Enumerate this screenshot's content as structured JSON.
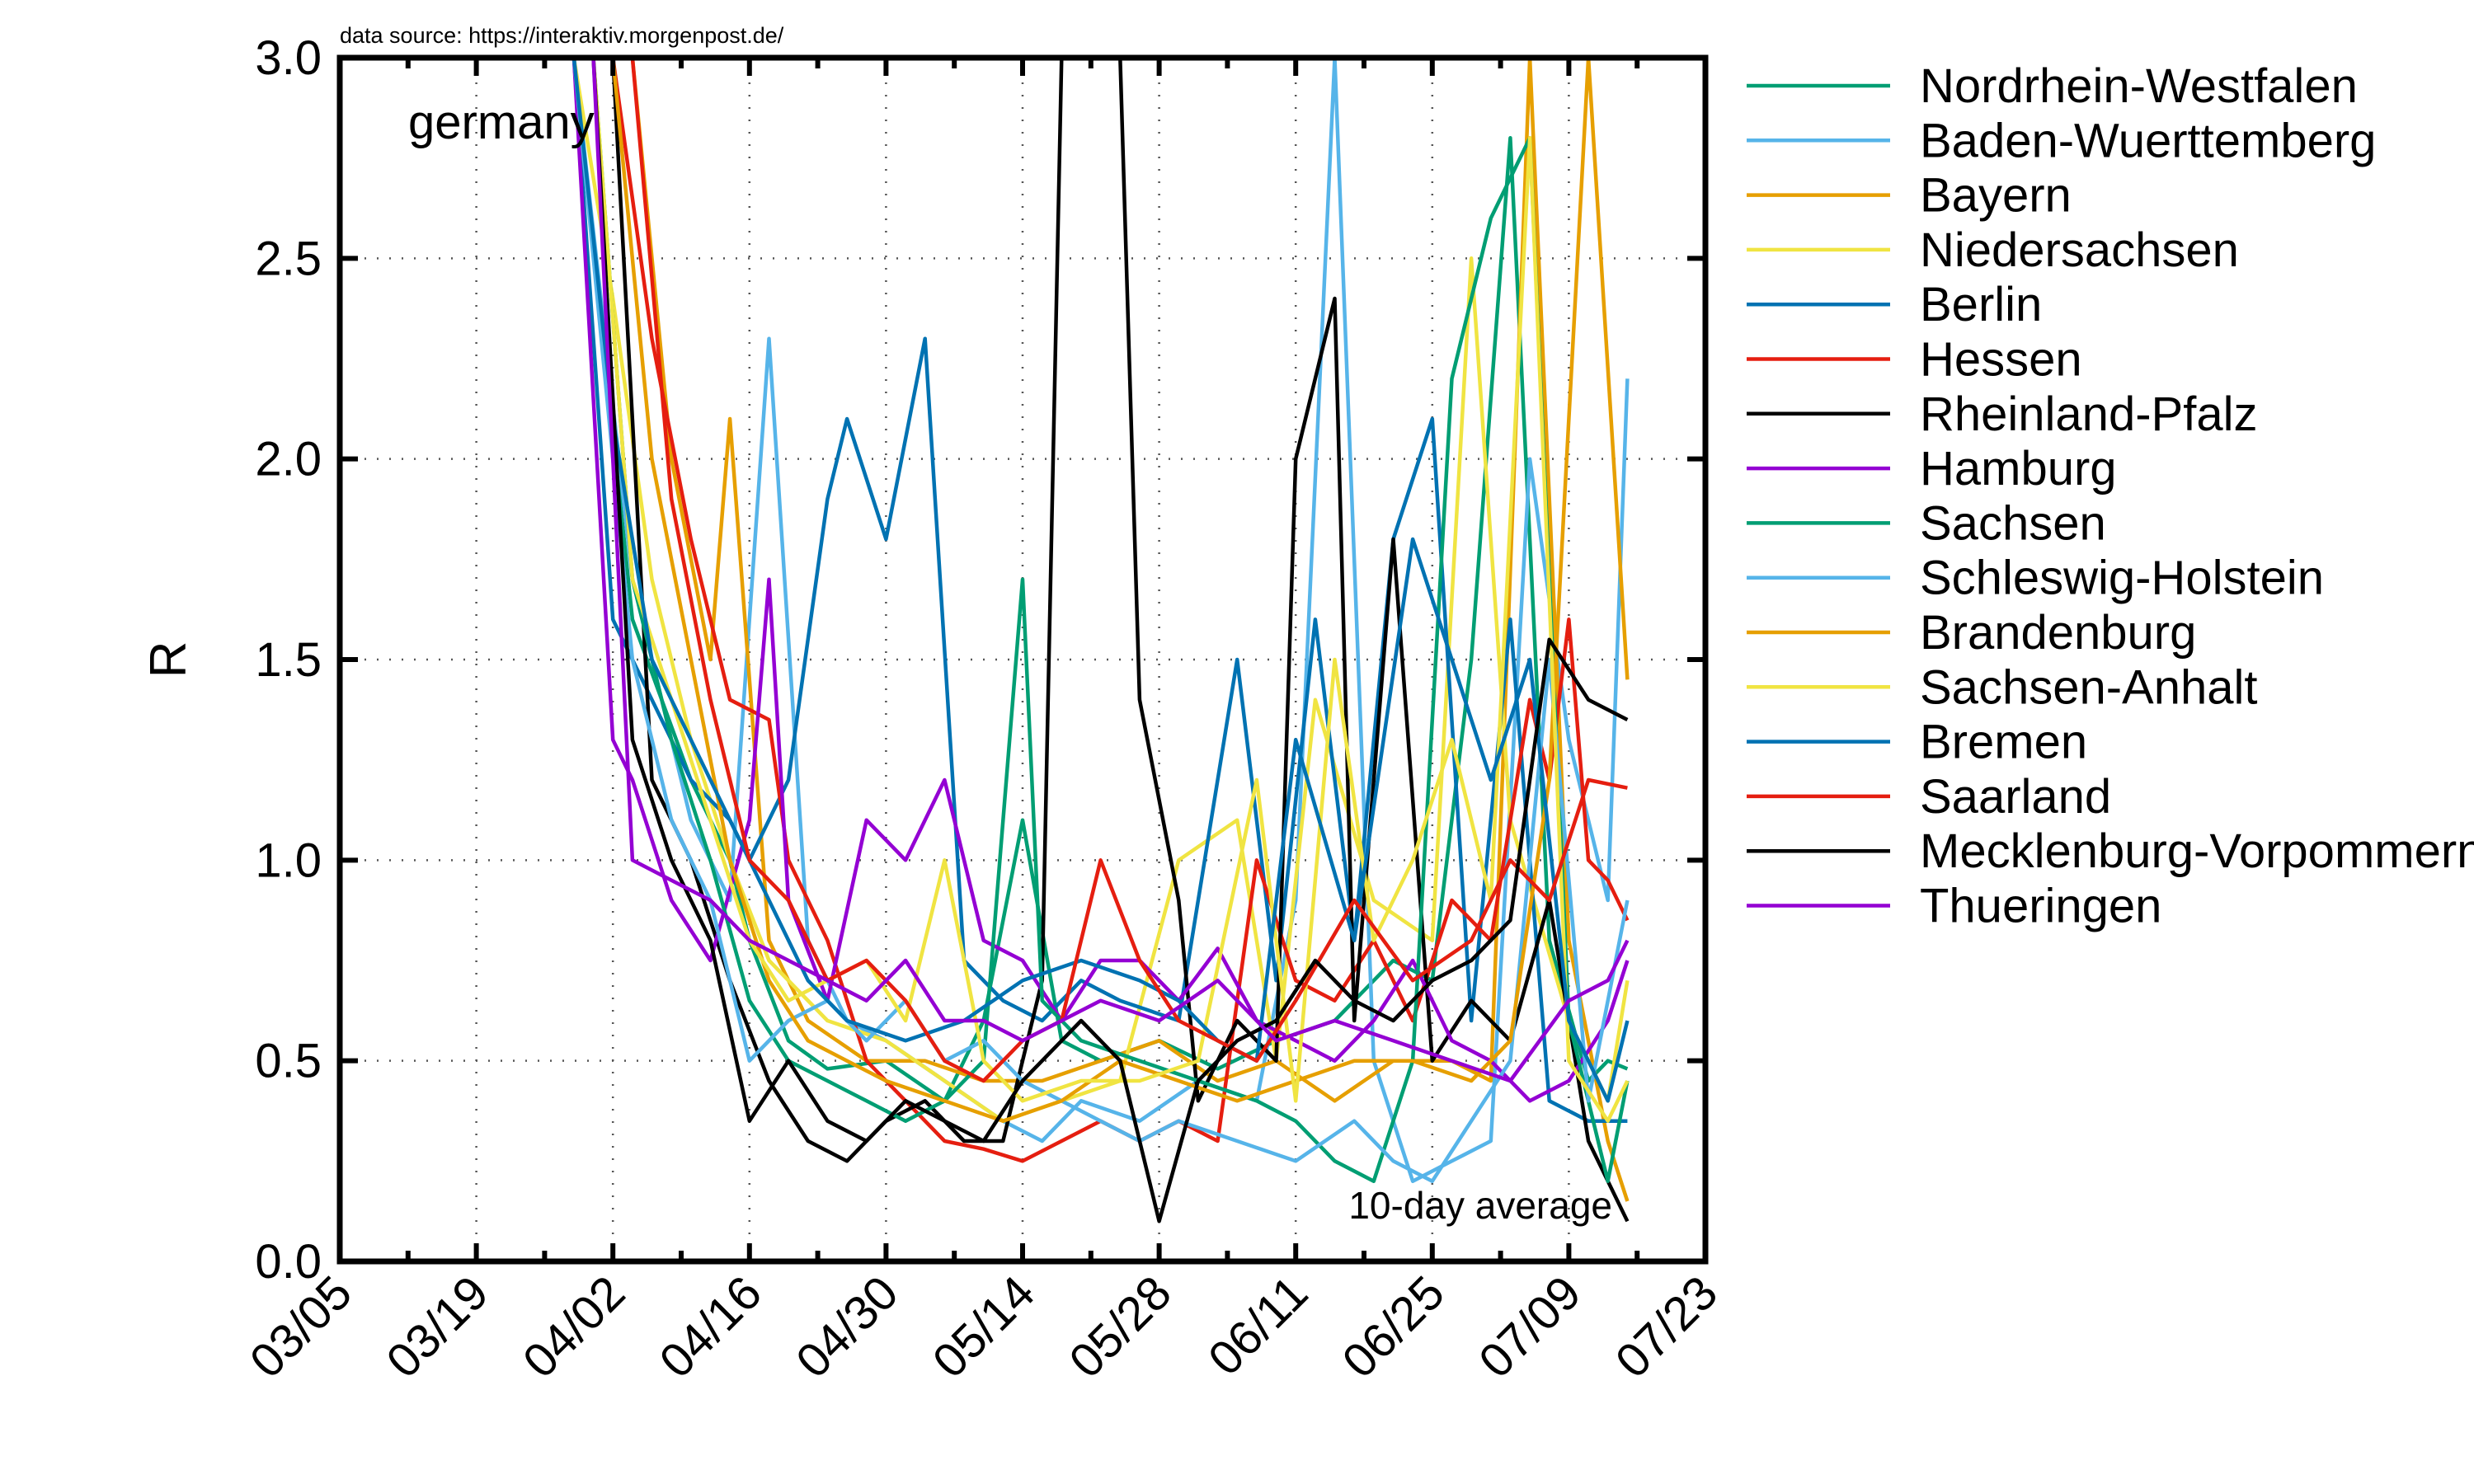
{
  "chart_data": {
    "type": "line",
    "title": "",
    "source_note": "data source: https://interaktiv.morgenpost.de/",
    "annotations": {
      "region": "germany",
      "smoothing": "10-day average"
    },
    "xlabel": "",
    "ylabel": "R",
    "xlim": [
      0,
      140
    ],
    "ylim": [
      0,
      3.0
    ],
    "x_ticks": [
      {
        "day": 0,
        "label": "03/05"
      },
      {
        "day": 14,
        "label": "03/19"
      },
      {
        "day": 28,
        "label": "04/02"
      },
      {
        "day": 42,
        "label": "04/16"
      },
      {
        "day": 56,
        "label": "04/30"
      },
      {
        "day": 70,
        "label": "05/14"
      },
      {
        "day": 84,
        "label": "05/28"
      },
      {
        "day": 98,
        "label": "06/11"
      },
      {
        "day": 112,
        "label": "06/25"
      },
      {
        "day": 126,
        "label": "07/09"
      },
      {
        "day": 140,
        "label": "07/23"
      }
    ],
    "y_ticks": [
      {
        "value": 0.0,
        "label": "0.0"
      },
      {
        "value": 0.5,
        "label": "0.5"
      },
      {
        "value": 1.0,
        "label": "1.0"
      },
      {
        "value": 1.5,
        "label": "1.5"
      },
      {
        "value": 2.0,
        "label": "2.0"
      },
      {
        "value": 2.5,
        "label": "2.5"
      },
      {
        "value": 3.0,
        "label": "3.0"
      }
    ],
    "grid": true,
    "legend_position": "right",
    "series": [
      {
        "name": "Nordrhein-Westfalen",
        "color": "#009e73",
        "x": [
          24,
          30,
          36,
          40,
          42,
          46,
          50,
          56,
          62,
          66,
          70,
          74,
          78,
          84,
          90,
          96,
          102,
          108,
          112,
          116,
          120,
          124,
          128,
          130,
          132
        ],
        "y": [
          3.0,
          1.6,
          1.2,
          1.0,
          0.8,
          0.55,
          0.48,
          0.5,
          0.4,
          0.6,
          1.1,
          0.55,
          0.5,
          0.55,
          0.48,
          0.55,
          0.6,
          0.75,
          0.7,
          1.5,
          2.8,
          0.8,
          0.45,
          0.5,
          0.48
        ]
      },
      {
        "name": "Baden-Wuerttemberg",
        "color": "#56b4e9",
        "x": [
          24,
          30,
          36,
          40,
          44,
          48,
          52,
          56,
          62,
          68,
          72,
          76,
          82,
          88,
          94,
          98,
          102,
          106,
          110,
          114,
          118,
          122,
          126,
          130,
          132
        ],
        "y": [
          3.0,
          1.7,
          1.1,
          0.9,
          2.3,
          0.8,
          0.6,
          0.55,
          0.45,
          0.35,
          0.3,
          0.4,
          0.35,
          0.45,
          0.4,
          0.9,
          3.0,
          0.5,
          0.2,
          0.25,
          0.3,
          2.0,
          1.3,
          0.9,
          2.2
        ]
      },
      {
        "name": "Bayern",
        "color": "#e69f00",
        "x": [
          24,
          30,
          34,
          38,
          40,
          44,
          48,
          54,
          60,
          66,
          72,
          78,
          84,
          90,
          96,
          102,
          108,
          114,
          118,
          122,
          126,
          130,
          132
        ],
        "y": [
          3.0,
          3.0,
          2.0,
          1.5,
          2.1,
          0.8,
          0.6,
          0.5,
          0.5,
          0.45,
          0.45,
          0.5,
          0.55,
          0.45,
          0.5,
          0.4,
          0.5,
          0.5,
          0.45,
          3.0,
          0.8,
          0.3,
          0.15
        ]
      },
      {
        "name": "Niedersachsen",
        "color": "#f0e442",
        "x": [
          24,
          28,
          32,
          36,
          40,
          44,
          50,
          56,
          62,
          68,
          74,
          80,
          86,
          92,
          96,
          100,
          106,
          112,
          116,
          120,
          126,
          130,
          132
        ],
        "y": [
          3.0,
          2.4,
          1.7,
          1.3,
          1.0,
          0.75,
          0.6,
          0.55,
          0.45,
          0.35,
          0.4,
          0.45,
          1.0,
          1.1,
          0.5,
          1.4,
          0.9,
          0.8,
          2.5,
          1.1,
          0.6,
          0.4,
          0.7
        ]
      },
      {
        "name": "Berlin",
        "color": "#0072b2",
        "x": [
          24,
          28,
          32,
          36,
          40,
          42,
          46,
          50,
          52,
          56,
          60,
          64,
          68,
          72,
          76,
          80,
          86,
          92,
          96,
          100,
          104,
          108,
          112,
          116,
          120,
          124,
          128,
          132
        ],
        "y": [
          3.0,
          1.6,
          1.4,
          1.2,
          1.1,
          1.0,
          1.2,
          1.9,
          2.1,
          1.8,
          2.3,
          0.75,
          0.65,
          0.6,
          0.7,
          0.65,
          0.6,
          1.5,
          0.7,
          1.6,
          0.8,
          1.8,
          2.1,
          0.6,
          1.6,
          0.4,
          0.35,
          0.35
        ]
      },
      {
        "name": "Hessen",
        "color": "#e51e10",
        "x": [
          28,
          32,
          36,
          40,
          44,
          46,
          50,
          54,
          58,
          62,
          66,
          70,
          74,
          78,
          82,
          86,
          90,
          94,
          98,
          102,
          106,
          110,
          114,
          118,
          122,
          124,
          126,
          128,
          130,
          132
        ],
        "y": [
          3.0,
          2.3,
          1.8,
          1.4,
          1.35,
          1.0,
          0.8,
          0.5,
          0.4,
          0.3,
          0.28,
          0.25,
          0.3,
          0.35,
          0.3,
          0.35,
          0.3,
          1.0,
          0.7,
          0.65,
          0.8,
          0.6,
          0.9,
          0.8,
          1.4,
          1.2,
          1.6,
          1.0,
          0.95,
          0.85
        ]
      },
      {
        "name": "Rheinland-Pfalz",
        "color": "#000000",
        "x": [
          28,
          32,
          36,
          40,
          44,
          48,
          52,
          56,
          60,
          64,
          68,
          72,
          74,
          76,
          80,
          82,
          86,
          88,
          92,
          96,
          98,
          102,
          104,
          108,
          112,
          116,
          120,
          124,
          128,
          132
        ],
        "y": [
          3.0,
          1.2,
          1.0,
          0.7,
          0.45,
          0.3,
          0.25,
          0.35,
          0.4,
          0.3,
          0.3,
          0.7,
          3.0,
          3.0,
          3.0,
          1.4,
          0.9,
          0.4,
          0.6,
          0.5,
          2.0,
          2.4,
          0.6,
          1.8,
          0.5,
          0.65,
          0.55,
          0.9,
          0.3,
          0.1
        ]
      },
      {
        "name": "Hamburg",
        "color": "#9400d3",
        "x": [
          24,
          28,
          30,
          34,
          38,
          42,
          44,
          46,
          50,
          54,
          58,
          62,
          66,
          70,
          74,
          78,
          82,
          86,
          90,
          94,
          98,
          102,
          106,
          110,
          114,
          118,
          122,
          126,
          130,
          132
        ],
        "y": [
          3.0,
          1.3,
          1.2,
          0.9,
          0.75,
          1.1,
          1.7,
          0.9,
          0.65,
          1.1,
          1.0,
          1.2,
          0.8,
          0.75,
          0.6,
          0.75,
          0.75,
          0.65,
          0.78,
          0.6,
          0.55,
          0.5,
          0.6,
          0.75,
          0.55,
          0.5,
          0.4,
          0.45,
          0.6,
          0.75
        ]
      },
      {
        "name": "Sachsen",
        "color": "#009e73",
        "x": [
          26,
          30,
          34,
          38,
          42,
          46,
          50,
          54,
          58,
          62,
          66,
          70,
          72,
          76,
          82,
          88,
          94,
          98,
          102,
          106,
          110,
          114,
          118,
          122,
          126,
          130,
          132
        ],
        "y": [
          3.0,
          1.7,
          1.3,
          1.0,
          0.65,
          0.5,
          0.45,
          0.4,
          0.35,
          0.4,
          0.5,
          1.7,
          0.65,
          0.55,
          0.5,
          0.45,
          0.4,
          0.35,
          0.25,
          0.2,
          0.5,
          2.2,
          2.6,
          2.8,
          0.6,
          0.2,
          0.45
        ]
      },
      {
        "name": "Schleswig-Holstein",
        "color": "#56b4e9",
        "x": [
          24,
          30,
          34,
          38,
          42,
          46,
          50,
          54,
          58,
          62,
          66,
          70,
          74,
          78,
          82,
          86,
          92,
          98,
          104,
          108,
          112,
          116,
          120,
          124,
          128,
          132
        ],
        "y": [
          3.0,
          1.5,
          1.1,
          0.9,
          0.5,
          0.6,
          0.65,
          0.55,
          0.65,
          0.5,
          0.55,
          0.45,
          0.4,
          0.35,
          0.3,
          0.35,
          0.3,
          0.25,
          0.35,
          0.25,
          0.2,
          0.35,
          0.5,
          1.5,
          0.4,
          0.9
        ]
      },
      {
        "name": "Brandenburg",
        "color": "#e69f00",
        "x": [
          28,
          32,
          36,
          40,
          44,
          48,
          52,
          56,
          62,
          68,
          74,
          80,
          86,
          92,
          98,
          104,
          110,
          116,
          120,
          124,
          128,
          132
        ],
        "y": [
          3.0,
          2.0,
          1.5,
          1.0,
          0.7,
          0.55,
          0.5,
          0.45,
          0.4,
          0.35,
          0.4,
          0.5,
          0.45,
          0.4,
          0.45,
          0.5,
          0.5,
          0.45,
          0.55,
          1.2,
          3.0,
          1.45
        ]
      },
      {
        "name": "Sachsen-Anhalt",
        "color": "#f0e442",
        "x": [
          26,
          30,
          34,
          38,
          42,
          46,
          50,
          54,
          58,
          62,
          66,
          70,
          76,
          82,
          88,
          94,
          98,
          102,
          106,
          110,
          114,
          118,
          122,
          126,
          130,
          132
        ],
        "y": [
          3.0,
          1.7,
          1.4,
          1.1,
          0.8,
          0.65,
          0.7,
          0.75,
          0.6,
          1.0,
          0.5,
          0.4,
          0.45,
          0.45,
          0.5,
          1.2,
          0.4,
          1.5,
          0.8,
          1.0,
          1.3,
          0.9,
          2.8,
          0.5,
          0.35,
          0.45
        ]
      },
      {
        "name": "Bremen",
        "color": "#0072b2",
        "x": [
          24,
          28,
          32,
          36,
          40,
          44,
          48,
          52,
          58,
          64,
          70,
          76,
          82,
          86,
          90,
          94,
          98,
          104,
          110,
          114,
          118,
          122,
          126,
          130,
          132
        ],
        "y": [
          3.0,
          2.1,
          1.5,
          1.3,
          1.1,
          0.9,
          0.7,
          0.6,
          0.55,
          0.6,
          0.7,
          0.75,
          0.7,
          0.65,
          0.55,
          0.5,
          1.3,
          0.8,
          1.8,
          1.5,
          1.2,
          1.5,
          0.6,
          0.4,
          0.6
        ]
      },
      {
        "name": "Saarland",
        "color": "#e51e10",
        "x": [
          30,
          34,
          38,
          42,
          46,
          50,
          54,
          58,
          62,
          66,
          70,
          74,
          78,
          82,
          86,
          90,
          94,
          98,
          104,
          110,
          116,
          120,
          124,
          128,
          132
        ],
        "y": [
          3.0,
          1.9,
          1.4,
          1.0,
          0.9,
          0.7,
          0.75,
          0.65,
          0.5,
          0.45,
          0.55,
          0.6,
          1.0,
          0.75,
          0.6,
          0.55,
          0.5,
          0.65,
          0.9,
          0.7,
          0.8,
          1.0,
          0.9,
          1.2,
          1.18
        ]
      },
      {
        "name": "Mecklenburg-Vorpommern",
        "color": "#000000",
        "x": [
          26,
          30,
          34,
          38,
          42,
          46,
          50,
          54,
          58,
          62,
          66,
          70,
          76,
          80,
          84,
          88,
          92,
          96,
          100,
          104,
          108,
          112,
          116,
          120,
          124,
          128,
          132
        ],
        "y": [
          3.0,
          1.3,
          1.0,
          0.8,
          0.35,
          0.5,
          0.35,
          0.3,
          0.4,
          0.35,
          0.3,
          0.45,
          0.6,
          0.5,
          0.1,
          0.45,
          0.55,
          0.6,
          0.75,
          0.65,
          0.6,
          0.7,
          0.75,
          0.85,
          1.55,
          1.4,
          1.35
        ]
      },
      {
        "name": "Thueringen",
        "color": "#9400d3",
        "x": [
          26,
          30,
          34,
          38,
          42,
          46,
          50,
          54,
          58,
          62,
          66,
          70,
          74,
          78,
          84,
          90,
          96,
          102,
          108,
          114,
          120,
          126,
          130,
          132
        ],
        "y": [
          3.0,
          1.0,
          0.95,
          0.9,
          0.8,
          0.75,
          0.7,
          0.65,
          0.75,
          0.6,
          0.6,
          0.55,
          0.6,
          0.65,
          0.6,
          0.7,
          0.55,
          0.6,
          0.55,
          0.5,
          0.45,
          0.65,
          0.7,
          0.8
        ]
      }
    ]
  }
}
